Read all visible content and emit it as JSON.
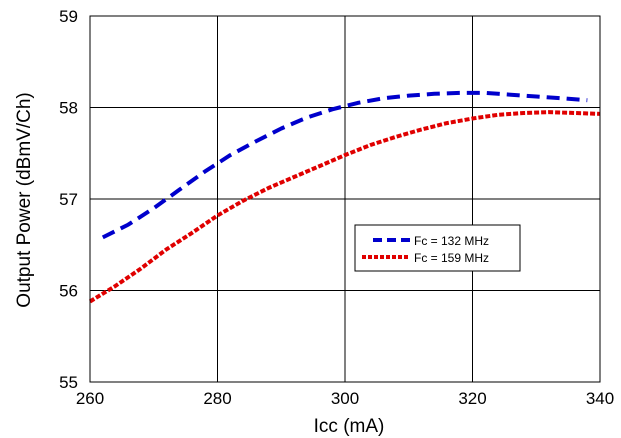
{
  "chart_data": {
    "type": "line",
    "title": "",
    "xlabel": "Icc (mA)",
    "ylabel": "Output Power (dBmV/Ch)",
    "xlim": [
      260,
      340
    ],
    "ylim": [
      55,
      59
    ],
    "x_ticks": [
      "260",
      "280",
      "300",
      "320",
      "340"
    ],
    "y_ticks": [
      "55",
      "56",
      "57",
      "58",
      "59"
    ],
    "grid": true,
    "legend_position": "middle-right",
    "series": [
      {
        "name": "Fc = 132 MHz",
        "color": "#0000cc",
        "style": "dashed",
        "x": [
          262,
          266,
          270,
          274,
          278,
          282,
          286,
          290,
          294,
          298,
          302,
          306,
          310,
          314,
          318,
          322,
          326,
          330,
          334,
          338
        ],
        "y": [
          56.58,
          56.72,
          56.9,
          57.1,
          57.3,
          57.48,
          57.63,
          57.77,
          57.89,
          57.98,
          58.05,
          58.1,
          58.13,
          58.15,
          58.16,
          58.16,
          58.14,
          58.12,
          58.1,
          58.08
        ]
      },
      {
        "name": "Fc = 159 MHz",
        "color": "#e00000",
        "style": "dotted",
        "x": [
          260,
          264,
          268,
          272,
          276,
          280,
          284,
          288,
          292,
          296,
          300,
          304,
          308,
          312,
          316,
          320,
          324,
          328,
          332,
          336,
          340
        ],
        "y": [
          55.88,
          56.05,
          56.24,
          56.45,
          56.63,
          56.82,
          56.98,
          57.12,
          57.24,
          57.36,
          57.48,
          57.59,
          57.68,
          57.76,
          57.83,
          57.88,
          57.92,
          57.94,
          57.95,
          57.94,
          57.93
        ]
      }
    ]
  }
}
